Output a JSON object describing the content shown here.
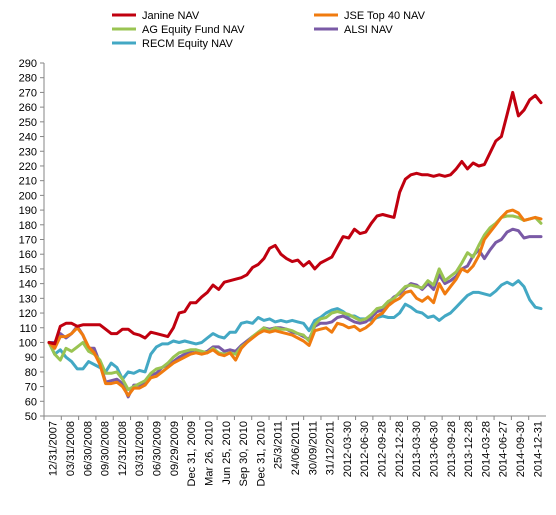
{
  "chart_data": {
    "type": "line",
    "title": "",
    "xlabel": "",
    "ylabel": "",
    "ylim": [
      50,
      290
    ],
    "yticks": [
      50,
      60,
      70,
      80,
      90,
      100,
      110,
      120,
      130,
      140,
      150,
      160,
      170,
      180,
      190,
      200,
      210,
      220,
      230,
      240,
      250,
      260,
      270,
      280,
      290
    ],
    "grid": false,
    "legend_position": "top",
    "x_tick_labels": [
      "12/31/2007",
      "03/31/2008",
      "06/30/2008",
      "09/30/2008",
      "12/31/2008",
      "03/31/2009",
      "06/30/2009",
      "09/29/2009",
      "Dec 31, 2009",
      "Mar 26, 2010",
      "Jun 25, 2010",
      "Sep 30, 2010",
      "Dec 31, 2010",
      "25/3/2011",
      "24/06/2011",
      "30/09/2011",
      "31/12/2011",
      "2012-03-30",
      "2012-06-30",
      "2012-09-28",
      "2012-12-28",
      "2013-03-30",
      "2013-06-30",
      "2013-09-28",
      "2013-12-28",
      "2014-03-28",
      "2014-06-27",
      "2014-09-30",
      "2014-12-31"
    ],
    "series": [
      {
        "name": "Janine NAV",
        "color": "#c0000f",
        "values": [
          100,
          99,
          111,
          113,
          113,
          111,
          112,
          112,
          112,
          112,
          109,
          106,
          106,
          109,
          109,
          106,
          105,
          103,
          107,
          106,
          105,
          104,
          110,
          120,
          121,
          127,
          127,
          131,
          134,
          139,
          136,
          141,
          142,
          143,
          144,
          146,
          151,
          153,
          157,
          164,
          166,
          160,
          157,
          155,
          156,
          152,
          155,
          150,
          154,
          156,
          158,
          165,
          172,
          171,
          177,
          174,
          175,
          181,
          186,
          187,
          186,
          185,
          202,
          211,
          214,
          215,
          214,
          214,
          213,
          214,
          213,
          214,
          218,
          223,
          218,
          222,
          220,
          221,
          229,
          237,
          240,
          255,
          270,
          254,
          258,
          265,
          268,
          263
        ]
      },
      {
        "name": "JSE Top 40 NAV",
        "color": "#f07b0f",
        "values": [
          100,
          96,
          104,
          104,
          106,
          110,
          105,
          97,
          93,
          85,
          72,
          72,
          73,
          70,
          64,
          69,
          69,
          71,
          76,
          77,
          80,
          83,
          86,
          88,
          90,
          92,
          93,
          92,
          93,
          95,
          92,
          91,
          93,
          88,
          96,
          100,
          103,
          106,
          108,
          107,
          108,
          107,
          106,
          105,
          103,
          101,
          98,
          108,
          109,
          110,
          107,
          113,
          112,
          110,
          111,
          108,
          110,
          113,
          118,
          120,
          125,
          128,
          130,
          134,
          135,
          130,
          128,
          131,
          127,
          140,
          133,
          138,
          143,
          150,
          148,
          152,
          159,
          170,
          175,
          180,
          185,
          189,
          190,
          188,
          183,
          184,
          185,
          184
        ]
      },
      {
        "name": "AG Equity Fund NAV",
        "color": "#9ac452",
        "values": [
          100,
          92,
          88,
          96,
          94,
          97,
          100,
          94,
          92,
          88,
          79,
          79,
          80,
          75,
          68,
          70,
          72,
          74,
          79,
          82,
          83,
          86,
          90,
          93,
          94,
          95,
          95,
          94,
          93,
          96,
          93,
          92,
          93,
          92,
          97,
          100,
          104,
          107,
          110,
          108,
          110,
          109,
          109,
          108,
          106,
          105,
          101,
          112,
          116,
          117,
          120,
          121,
          120,
          119,
          117,
          115,
          116,
          119,
          123,
          124,
          128,
          130,
          134,
          138,
          139,
          138,
          137,
          142,
          139,
          150,
          142,
          145,
          148,
          154,
          161,
          158,
          166,
          173,
          178,
          181,
          185,
          186,
          186,
          185,
          183,
          184,
          185,
          181
        ]
      },
      {
        "name": "ALSI NAV",
        "color": "#7a5aa6",
        "values": [
          100,
          100,
          106,
          103,
          106,
          111,
          105,
          96,
          96,
          86,
          73,
          74,
          75,
          72,
          63,
          71,
          71,
          73,
          78,
          79,
          83,
          85,
          87,
          90,
          92,
          94,
          95,
          93,
          94,
          97,
          97,
          94,
          95,
          94,
          98,
          101,
          104,
          106,
          110,
          109,
          110,
          110,
          109,
          107,
          106,
          104,
          102,
          111,
          113,
          113,
          114,
          117,
          118,
          116,
          114,
          113,
          114,
          117,
          121,
          122,
          127,
          131,
          133,
          137,
          140,
          139,
          136,
          140,
          136,
          146,
          140,
          142,
          145,
          150,
          152,
          159,
          163,
          157,
          163,
          168,
          170,
          175,
          177,
          176,
          171,
          172,
          172,
          172
        ]
      },
      {
        "name": "RECM Equity  NAV",
        "color": "#43a8c4",
        "values": [
          100,
          92,
          95,
          90,
          87,
          82,
          82,
          87,
          85,
          83,
          80,
          86,
          83,
          75,
          80,
          79,
          81,
          80,
          92,
          97,
          99,
          99,
          101,
          100,
          101,
          100,
          99,
          100,
          103,
          106,
          104,
          103,
          107,
          107,
          113,
          114,
          113,
          117,
          115,
          116,
          114,
          115,
          114,
          115,
          114,
          113,
          108,
          115,
          117,
          120,
          122,
          123,
          121,
          118,
          118,
          116,
          116,
          115,
          117,
          118,
          117,
          117,
          120,
          126,
          124,
          121,
          120,
          117,
          118,
          115,
          118,
          120,
          124,
          128,
          132,
          134,
          134,
          133,
          132,
          135,
          139,
          141,
          139,
          142,
          138,
          129,
          124,
          123
        ]
      }
    ]
  }
}
